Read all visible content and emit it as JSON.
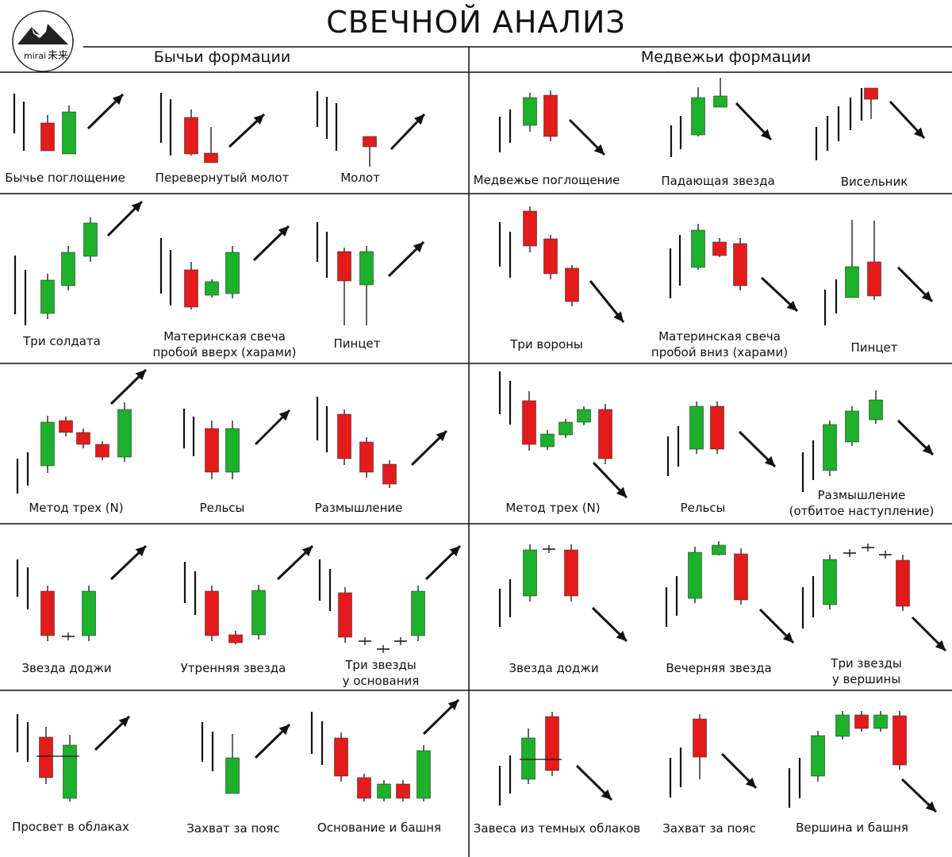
{
  "title": "СВЕЧНОЙ АНАЛИЗ",
  "logo": {
    "text_latin": "mirai",
    "text_cjk": "未来"
  },
  "sections": {
    "bull": "Бычьи формации",
    "bear": "Медвежьи формации"
  },
  "colors": {
    "bull": "#1db02a",
    "bear": "#e41b1b",
    "line": "#111111"
  },
  "patterns": [
    {
      "id": "bull-engulf",
      "label": [
        "Бычье поглощение"
      ],
      "arrow": "up"
    },
    {
      "id": "inv-hammer",
      "label": [
        "Перевернутый молот"
      ],
      "arrow": "up"
    },
    {
      "id": "hammer",
      "label": [
        "Молот"
      ],
      "arrow": "up"
    },
    {
      "id": "bear-engulf",
      "label": [
        "Медвежье поглощение"
      ],
      "arrow": "down"
    },
    {
      "id": "shooting-star",
      "label": [
        "Падающая звезда"
      ],
      "arrow": "down"
    },
    {
      "id": "hanging-man",
      "label": [
        "Висельник"
      ],
      "arrow": "down"
    },
    {
      "id": "three-soldiers",
      "label": [
        "Три солдата"
      ],
      "arrow": "up"
    },
    {
      "id": "harami-up",
      "label": [
        "Материнская свеча",
        "пробой вверх (харами)"
      ],
      "arrow": "up"
    },
    {
      "id": "tweezer-bottom",
      "label": [
        "Пинцет"
      ],
      "arrow": "up"
    },
    {
      "id": "three-crows",
      "label": [
        "Три вороны"
      ],
      "arrow": "down"
    },
    {
      "id": "harami-down",
      "label": [
        "Материнская свеча",
        "пробой вниз (харами)"
      ],
      "arrow": "down"
    },
    {
      "id": "tweezer-top",
      "label": [
        "Пинцет"
      ],
      "arrow": "down"
    },
    {
      "id": "three-methods-up",
      "label": [
        "Метод трех (N)"
      ],
      "arrow": "up"
    },
    {
      "id": "rails-up",
      "label": [
        "Рельсы"
      ],
      "arrow": "up"
    },
    {
      "id": "deliberation-up",
      "label": [
        "Размышление"
      ],
      "arrow": "up"
    },
    {
      "id": "three-methods-down",
      "label": [
        "Метод трех (N)"
      ],
      "arrow": "down"
    },
    {
      "id": "rails-down",
      "label": [
        "Рельсы"
      ],
      "arrow": "down"
    },
    {
      "id": "deliberation-down",
      "label": [
        "Размышление",
        "(отбитое наступление)"
      ],
      "arrow": "down"
    },
    {
      "id": "doji-star-bull",
      "label": [
        "Звезда доджи"
      ],
      "arrow": "up"
    },
    {
      "id": "morning-star",
      "label": [
        "Утренняя звезда"
      ],
      "arrow": "up"
    },
    {
      "id": "three-stars-bottom",
      "label": [
        "Три звезды",
        "у основания"
      ],
      "arrow": "up"
    },
    {
      "id": "doji-star-bear",
      "label": [
        "Звезда доджи"
      ],
      "arrow": "down"
    },
    {
      "id": "evening-star",
      "label": [
        "Вечерняя звезда"
      ],
      "arrow": "down"
    },
    {
      "id": "three-stars-top",
      "label": [
        "Три звезды",
        "у вершины"
      ],
      "arrow": "down"
    },
    {
      "id": "piercing",
      "label": [
        "Просвет в облаках"
      ],
      "arrow": "up"
    },
    {
      "id": "belt-hold-bull",
      "label": [
        "Захват за пояс"
      ],
      "arrow": "up"
    },
    {
      "id": "tower-bottom",
      "label": [
        "Основание и башня"
      ],
      "arrow": "up"
    },
    {
      "id": "dark-cloud",
      "label": [
        "Завеса из темных облаков"
      ],
      "arrow": "down"
    },
    {
      "id": "belt-hold-bear",
      "label": [
        "Захват за пояс"
      ],
      "arrow": "down"
    },
    {
      "id": "tower-top",
      "label": [
        "Вершина и башня"
      ],
      "arrow": "down"
    }
  ]
}
